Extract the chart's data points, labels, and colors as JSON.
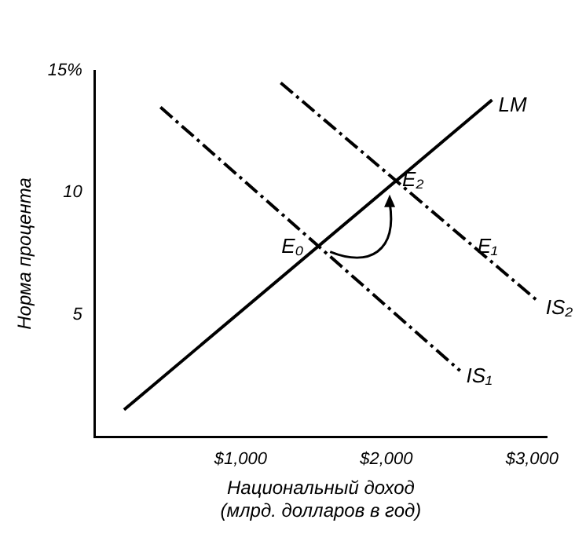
{
  "chart_data": {
    "type": "line",
    "xlabel": "Национальный доход\n(млрд. долларов в год)",
    "ylabel": "Норма процента",
    "xlim": [
      0,
      3100
    ],
    "ylim": [
      0,
      15
    ],
    "xticks": [
      {
        "value": 1000,
        "label": "$1,000"
      },
      {
        "value": 2000,
        "label": "$2,000"
      },
      {
        "value": 3000,
        "label": "$3,000"
      }
    ],
    "yticks": [
      {
        "value": 5,
        "label": "5"
      },
      {
        "value": 10,
        "label": "10"
      },
      {
        "value": 15,
        "label": "15%"
      }
    ],
    "grid": false,
    "legend": false,
    "marker": "none",
    "series": [
      {
        "name": "LM",
        "color": "#000000",
        "line_style": "solid",
        "x": [
          200,
          2725
        ],
        "values": [
          1.1,
          13.8
        ]
      },
      {
        "name": "IS₁",
        "color": "#000000",
        "line_style": "dashed",
        "x": [
          450,
          2505
        ],
        "values": [
          13.5,
          2.7
        ]
      },
      {
        "name": "IS₂",
        "color": "#000000",
        "line_style": "dashed",
        "x": [
          1275,
          3050
        ],
        "values": [
          14.5,
          5.5
        ]
      }
    ],
    "annotations": [
      {
        "text": "E₀",
        "x": 1560,
        "y": 7.9
      },
      {
        "text": "E₁",
        "x": 2560,
        "y": 7.9
      },
      {
        "text": "E₂",
        "x": 2044,
        "y": 10.5
      }
    ]
  }
}
